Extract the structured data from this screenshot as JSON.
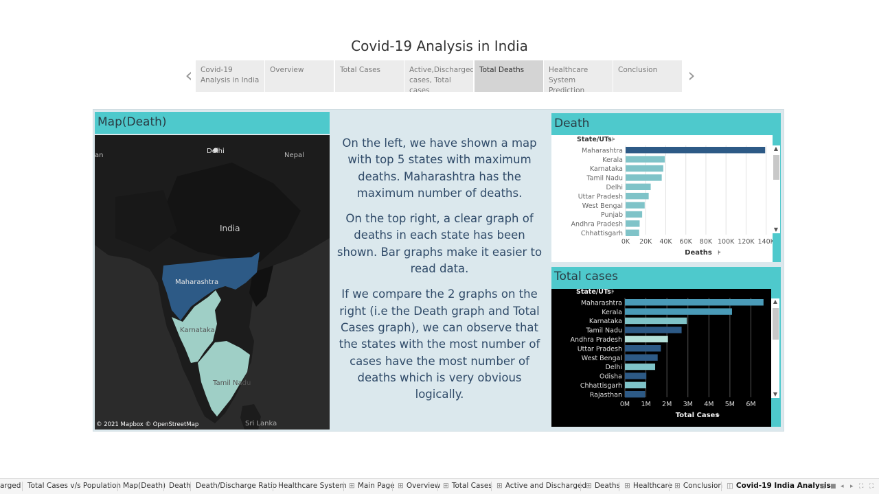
{
  "story": {
    "title": "Covid-19 Analysis in India",
    "points": [
      {
        "label": "Covid-19 Analysis in India",
        "active": false
      },
      {
        "label": "Overview",
        "active": false
      },
      {
        "label": "Total Cases",
        "active": false
      },
      {
        "label": "Active,Discharged cases, Total cases",
        "active": false
      },
      {
        "label": "Total Deaths",
        "active": true
      },
      {
        "label": "Healthcare System Prediction",
        "active": false
      },
      {
        "label": "Conclusion",
        "active": false
      }
    ],
    "prev_icon": "chevron-left-icon",
    "next_icon": "chevron-right-icon"
  },
  "map_panel": {
    "title": "Map(Death)",
    "labels": {
      "delhi": "Delhi",
      "nepal": "Nepal",
      "india": "India",
      "maharashtra": "Maharashtra",
      "karnataka": "Karnataka",
      "tamil_nadu": "Tamil Nadu",
      "sri_lanka": "Sri Lanka",
      "pakistan_fragment": "an"
    },
    "attribution": "© 2021 Mapbox © OpenStreetMap",
    "colors": {
      "maharashtra": "#2d5a86",
      "karnataka": "#9fcfc6",
      "tamil_nadu": "#9fcfc6",
      "base": "#1b1b1b"
    }
  },
  "text_panel": {
    "paragraphs": [
      "On the left, we have shown a map with top 5 states with maximum deaths. Maharashtra has the maximum number of deaths.",
      "On the top right, a clear graph of deaths in each state has been shown. Bar graphs make it easier to read data.",
      "If we compare the 2 graphs on the right (i.e the Death graph and Total Cases graph), we can observe that the states with the most number of cases have the most number of deaths which is very obvious logically."
    ]
  },
  "death_panel": {
    "title": "Death"
  },
  "cases_panel": {
    "title": "Total cases"
  },
  "chart_data": [
    {
      "type": "bar",
      "orientation": "horizontal",
      "title": "Death",
      "ylabel": "State/UTs",
      "xlabel": "Deaths",
      "categories": [
        "Maharashtra",
        "Kerala",
        "Karnataka",
        "Tamil Nadu",
        "Delhi",
        "Uttar Pradesh",
        "West Bengal",
        "Punjab",
        "Andhra Pradesh",
        "Chhattisgarh"
      ],
      "values": [
        139000,
        39000,
        37500,
        36000,
        25000,
        23000,
        19000,
        16500,
        14000,
        13500
      ],
      "colors": [
        "#2d5a86",
        "#7fc3c8",
        "#7fc3c8",
        "#7fc3c8",
        "#7fc3c8",
        "#7fc3c8",
        "#7fc3c8",
        "#7fc3c8",
        "#7fc3c8",
        "#7fc3c8"
      ],
      "ticks": [
        "0K",
        "20K",
        "40K",
        "60K",
        "80K",
        "100K",
        "120K",
        "140K"
      ],
      "xlim": [
        0,
        145000
      ],
      "grid": true,
      "background": "#ffffff"
    },
    {
      "type": "bar",
      "orientation": "horizontal",
      "title": "Total cases",
      "ylabel": "State/UTs",
      "xlabel": "Total Cases",
      "categories": [
        "Maharashtra",
        "Kerala",
        "Karnataka",
        "Tamil Nadu",
        "Andhra Pradesh",
        "Uttar Pradesh",
        "West Bengal",
        "Delhi",
        "Odisha",
        "Chhattisgarh",
        "Rajasthan"
      ],
      "values": [
        6600000,
        5100000,
        2950000,
        2700000,
        2050000,
        1710000,
        1560000,
        1440000,
        1020000,
        1010000,
        960000
      ],
      "colors": [
        "#4a9bb8",
        "#4a9bb8",
        "#7fc3c8",
        "#2d5a86",
        "#b4e0d8",
        "#2d5a86",
        "#2d5a86",
        "#7fc3c8",
        "#2d5a86",
        "#7fc3c8",
        "#2d5a86"
      ],
      "ticks": [
        "0M",
        "1M",
        "2M",
        "3M",
        "4M",
        "5M",
        "6M"
      ],
      "xlim": [
        0,
        6900000
      ],
      "grid": true,
      "background": "#000000"
    }
  ],
  "sort_icon": "sort-icon",
  "bottom_tabs": [
    {
      "label": "arged",
      "icon": ""
    },
    {
      "label": "Total Cases v/s Population",
      "icon": ""
    },
    {
      "label": "Map(Death)",
      "icon": ""
    },
    {
      "label": "Death",
      "icon": ""
    },
    {
      "label": "Death/Discharge Ratio",
      "icon": ""
    },
    {
      "label": "Healthcare System",
      "icon": ""
    },
    {
      "label": "Main Page",
      "icon": "⊞"
    },
    {
      "label": "Overview",
      "icon": "⊞"
    },
    {
      "label": "Total Cases",
      "icon": "⊞"
    },
    {
      "label": "Active and Discharged",
      "icon": "⊞"
    },
    {
      "label": "Deaths",
      "icon": "⊞"
    },
    {
      "label": "Healthcare",
      "icon": "⊞"
    },
    {
      "label": "Conclusion",
      "icon": "⊞"
    },
    {
      "label": "Covid-19 India Analysis",
      "icon": "◫",
      "active": true
    }
  ]
}
